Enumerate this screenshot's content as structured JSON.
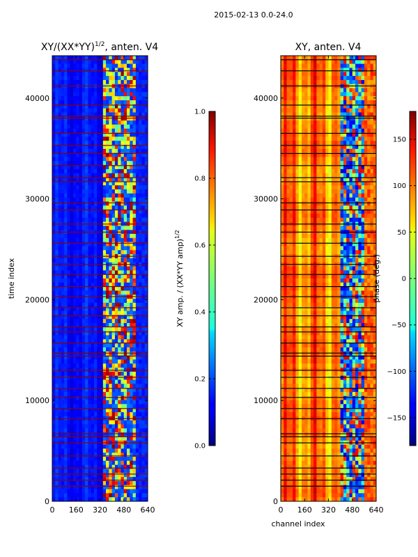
{
  "figure_title": "2015-02-13 0.0-24.0",
  "chart_data": [
    {
      "type": "heatmap",
      "title_main": "XY/(XX*YY)",
      "title_sup": "1/2",
      "title_rest": ", anten. V4",
      "xlabel": "",
      "ylabel": "time index",
      "xlim": [
        0,
        640
      ],
      "ylim": [
        0,
        44200
      ],
      "xticks": [
        "0",
        "160",
        "320",
        "480",
        "640"
      ],
      "yticks": [
        "0",
        "10000",
        "20000",
        "30000",
        "40000"
      ],
      "xtick_values": [
        0,
        160,
        320,
        480,
        640
      ],
      "ytick_values": [
        0,
        10000,
        20000,
        30000,
        40000
      ],
      "colormap": "jet",
      "colorbar": {
        "label_main": "XY amp. / (XX*YY amp)",
        "label_sup": "1/2",
        "ticks": [
          "0.0",
          "0.2",
          "0.4",
          "0.6",
          "0.8",
          "1.0"
        ],
        "tick_values": [
          0.0,
          0.2,
          0.4,
          0.6,
          0.8,
          1.0
        ],
        "range": [
          0.0,
          1.0
        ]
      },
      "flagged_rows": [
        1500,
        2100,
        2700,
        3300,
        4500,
        5800,
        6400,
        6700,
        8200,
        9200,
        10300,
        11200,
        12300,
        13000,
        14400,
        14700,
        15700,
        16800,
        17300,
        18400,
        19200,
        20300,
        21300,
        22500,
        23500,
        24300,
        25600,
        26700,
        27500,
        28900,
        29600,
        31700,
        32100,
        33300,
        34500,
        35300,
        36500,
        38000,
        38200,
        39300,
        41200,
        42700,
        43800
      ],
      "features": "low amplitude (~0.1) for channels 0-340; high variable amplitude (0.4-1.0) for channels 340-560"
    },
    {
      "type": "heatmap",
      "title": "XY, anten. V4",
      "xlabel": "channel index",
      "ylabel": "",
      "xlim": [
        0,
        640
      ],
      "ylim": [
        0,
        44200
      ],
      "xticks": [
        "0",
        "160",
        "320",
        "480",
        "640"
      ],
      "yticks": [
        "0",
        "10000",
        "20000",
        "30000",
        "40000"
      ],
      "xtick_values": [
        0,
        160,
        320,
        480,
        640
      ],
      "ytick_values": [
        0,
        10000,
        20000,
        30000,
        40000
      ],
      "colormap": "jet",
      "colorbar": {
        "label": "phase (deg.)",
        "ticks": [
          "−150",
          "−100",
          "−50",
          "0",
          "50",
          "100",
          "150"
        ],
        "tick_values": [
          -150,
          -100,
          -50,
          0,
          50,
          100,
          150
        ],
        "range": [
          -180,
          180
        ]
      },
      "flagged_rows": [
        1500,
        2100,
        2700,
        3300,
        4500,
        5800,
        6400,
        6700,
        8200,
        9200,
        10300,
        11200,
        12300,
        13000,
        14400,
        14700,
        15700,
        16800,
        17300,
        18400,
        19200,
        20300,
        21300,
        22500,
        23500,
        24300,
        25600,
        26700,
        27500,
        28900,
        29600,
        31700,
        32100,
        33300,
        34500,
        35300,
        36500,
        38000,
        38200,
        39300,
        41200,
        42700,
        43800
      ],
      "features": "phase mostly 80-150 deg (yellow-red vertical stripes) for channels 0-400; noisy blue/cyan phases for channels 400-560"
    }
  ]
}
